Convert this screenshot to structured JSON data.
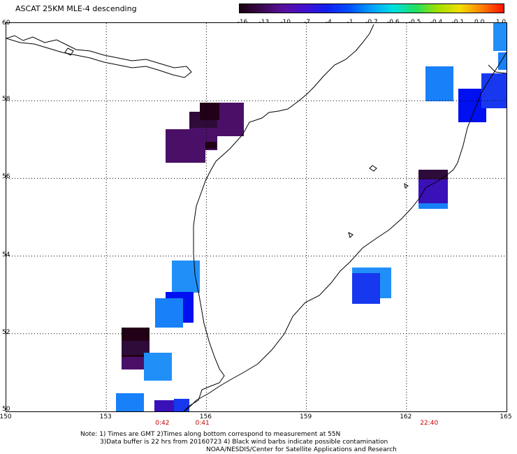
{
  "title": "ASCAT 25KM MLE-4 descending",
  "colorbar": {
    "labels": [
      "-16",
      "-13",
      "-10",
      "-7",
      "-4",
      "-1",
      "-0.7",
      "-0.6",
      "-0.5",
      "-0.4",
      "-0.1",
      "0.0",
      "1.0"
    ],
    "colors": [
      "#1a0010",
      "#3a0850",
      "#5a10a0",
      "#4010d0",
      "#1020f0",
      "#0050ff",
      "#00a0ff",
      "#00e0e0",
      "#20e060",
      "#a0e000",
      "#f0e000",
      "#ff8000",
      "#ff1000"
    ]
  },
  "axes": {
    "x_ticks": [
      "150",
      "153",
      "156",
      "159",
      "162",
      "165"
    ],
    "y_ticks": [
      "60",
      "58",
      "56",
      "54",
      "52",
      "50"
    ]
  },
  "times": [
    {
      "label": "0:42",
      "lon": 154.7
    },
    {
      "label": "0:41",
      "lon": 155.9
    },
    {
      "label": "22:40",
      "lon": 162.7
    }
  ],
  "notes": {
    "line1": "Note: 1) Times are GMT 2)Times along bottom correspond to measurement at 55N",
    "line2": "3)Data buffer is 22 hrs from 20160723 4) Black wind barbs indicate possible contamination",
    "line3": "NOAA/NESDIS/Center for Satellite Applications and Research"
  },
  "colors": {
    "dark": "#220018",
    "dark2": "#2e0c3a",
    "purple": "#4a1068",
    "violet": "#3a10b8",
    "blue": "#0010f0",
    "blue2": "#1838f0",
    "lightblue": "#1880f8",
    "skyblue": "#2090f8"
  }
}
